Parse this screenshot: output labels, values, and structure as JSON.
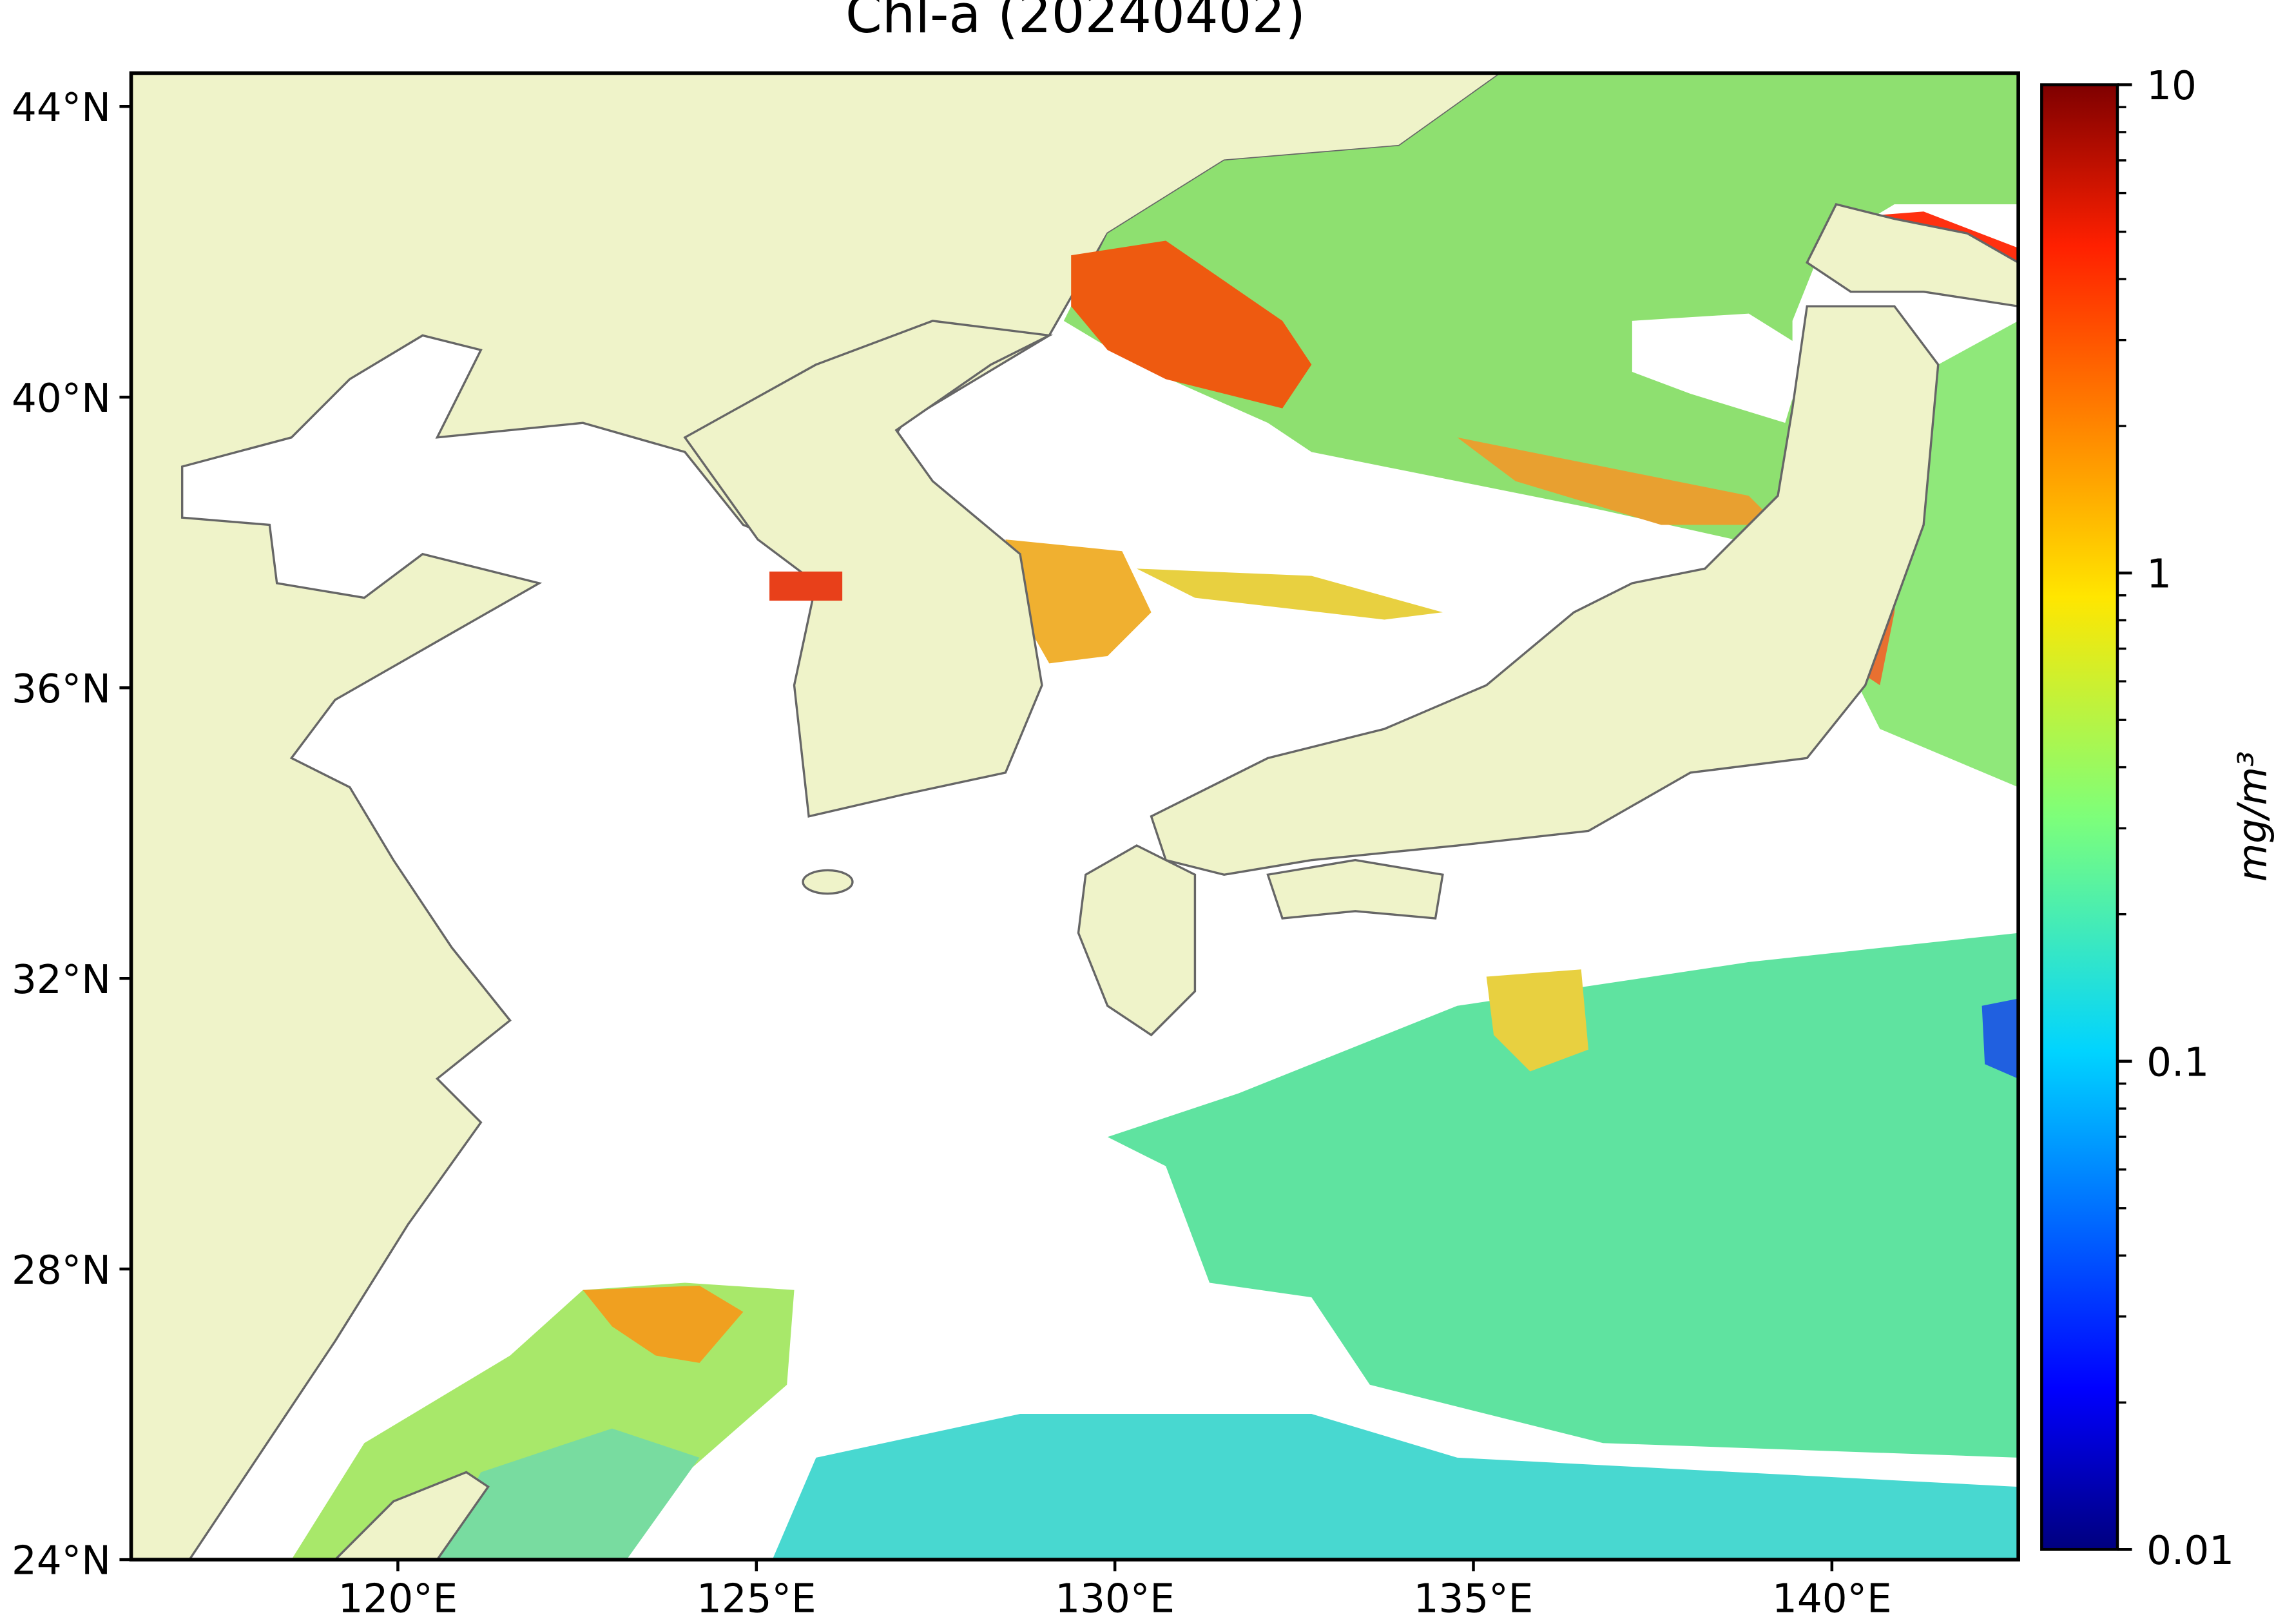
{
  "chart_data": {
    "type": "map",
    "title": "Chl-a (20240402)",
    "xlim": [
      116.28,
      142.6
    ],
    "ylim": [
      24,
      44.46
    ],
    "xticks": [
      {
        "value": 120,
        "label": "120°E"
      },
      {
        "value": 125,
        "label": "125°E"
      },
      {
        "value": 130,
        "label": "130°E"
      },
      {
        "value": 135,
        "label": "135°E"
      },
      {
        "value": 140,
        "label": "140°E"
      }
    ],
    "yticks": [
      {
        "value": 24,
        "label": "24°N"
      },
      {
        "value": 28,
        "label": "28°N"
      },
      {
        "value": 32,
        "label": "32°N"
      },
      {
        "value": 36,
        "label": "36°N"
      },
      {
        "value": 40,
        "label": "40°N"
      },
      {
        "value": 44,
        "label": "44°N"
      }
    ],
    "colorbar": {
      "label": "mg/m³",
      "lim": [
        0.01,
        10
      ],
      "ticks": [
        0.01,
        0.1,
        1,
        10
      ],
      "scale": "log",
      "colormap": "jet"
    }
  }
}
